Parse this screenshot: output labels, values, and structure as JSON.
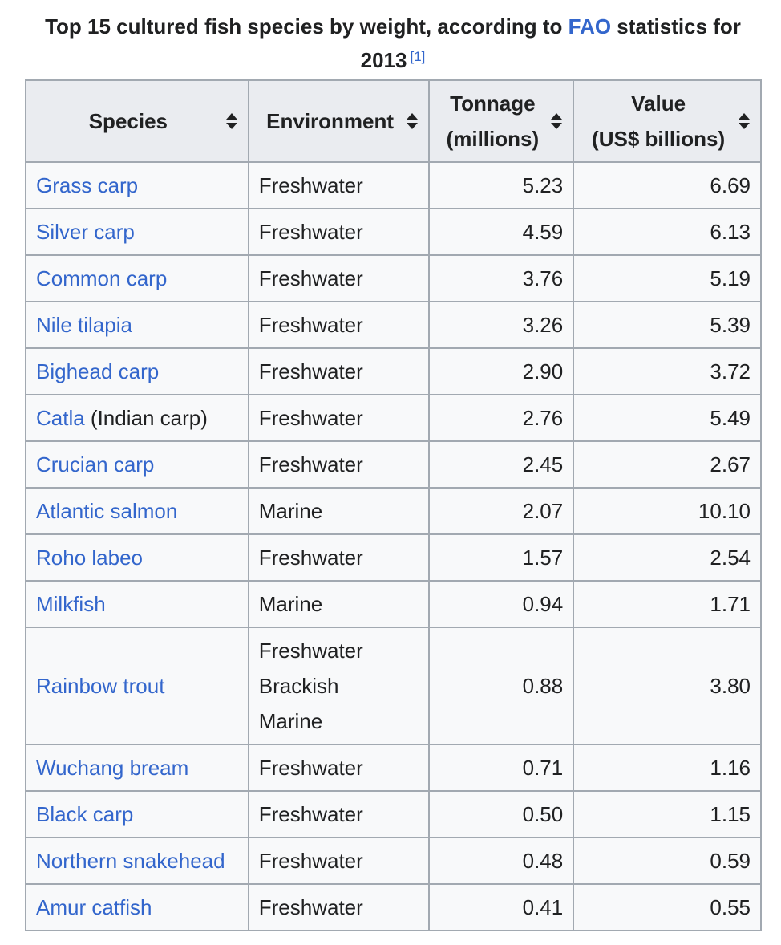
{
  "caption": {
    "text_before": "Top 15 cultured fish species by weight, according to ",
    "link": "FAO",
    "text_after": " statistics for 2013",
    "reference": "[1]"
  },
  "table": {
    "headers": {
      "species": "Species",
      "environment": "Environment",
      "tonnage_line1": "Tonnage",
      "tonnage_line2": "(millions)",
      "value_line1": "Value",
      "value_line2": "(US$ billions)"
    },
    "rows": [
      {
        "species": "Grass carp",
        "species_note": "",
        "environment": [
          "Freshwater"
        ],
        "tonnage": "5.23",
        "value": "6.69"
      },
      {
        "species": "Silver carp",
        "species_note": "",
        "environment": [
          "Freshwater"
        ],
        "tonnage": "4.59",
        "value": "6.13"
      },
      {
        "species": "Common carp",
        "species_note": "",
        "environment": [
          "Freshwater"
        ],
        "tonnage": "3.76",
        "value": "5.19"
      },
      {
        "species": "Nile tilapia",
        "species_note": "",
        "environment": [
          "Freshwater"
        ],
        "tonnage": "3.26",
        "value": "5.39"
      },
      {
        "species": "Bighead carp",
        "species_note": "",
        "environment": [
          "Freshwater"
        ],
        "tonnage": "2.90",
        "value": "3.72"
      },
      {
        "species": "Catla",
        "species_note": " (Indian carp)",
        "environment": [
          "Freshwater"
        ],
        "tonnage": "2.76",
        "value": "5.49"
      },
      {
        "species": "Crucian carp",
        "species_note": "",
        "environment": [
          "Freshwater"
        ],
        "tonnage": "2.45",
        "value": "2.67"
      },
      {
        "species": "Atlantic salmon",
        "species_note": "",
        "environment": [
          "Marine"
        ],
        "tonnage": "2.07",
        "value": "10.10"
      },
      {
        "species": "Roho labeo",
        "species_note": "",
        "environment": [
          "Freshwater"
        ],
        "tonnage": "1.57",
        "value": "2.54"
      },
      {
        "species": "Milkfish",
        "species_note": "",
        "environment": [
          "Marine"
        ],
        "tonnage": "0.94",
        "value": "1.71"
      },
      {
        "species": "Rainbow trout",
        "species_note": "",
        "environment": [
          "Freshwater",
          "Brackish",
          "Marine"
        ],
        "tonnage": "0.88",
        "value": "3.80"
      },
      {
        "species": "Wuchang bream",
        "species_note": "",
        "environment": [
          "Freshwater"
        ],
        "tonnage": "0.71",
        "value": "1.16"
      },
      {
        "species": "Black carp",
        "species_note": "",
        "environment": [
          "Freshwater"
        ],
        "tonnage": "0.50",
        "value": "1.15"
      },
      {
        "species": "Northern snakehead",
        "species_note": "",
        "environment": [
          "Freshwater"
        ],
        "tonnage": "0.48",
        "value": "0.59"
      },
      {
        "species": "Amur catfish",
        "species_note": "",
        "environment": [
          "Freshwater"
        ],
        "tonnage": "0.41",
        "value": "0.55"
      }
    ]
  },
  "icons": {
    "sort": "sort-arrows-icon"
  },
  "colors": {
    "link": "#3366cc",
    "text": "#202122",
    "header_bg": "#eaecf0",
    "cell_bg": "#f8f9fa",
    "border": "#a2a9b1"
  }
}
